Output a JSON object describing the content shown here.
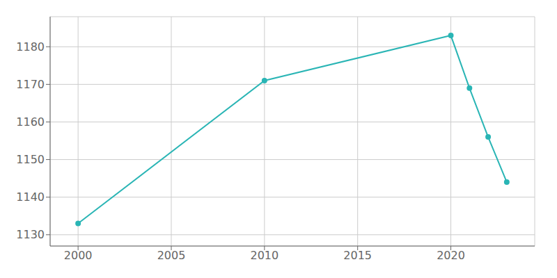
{
  "chart_data": {
    "type": "line",
    "x": [
      2000,
      2010,
      2020,
      2021,
      2022,
      2023
    ],
    "values": [
      1133,
      1171,
      1183,
      1169,
      1156,
      1144
    ],
    "color": "#2ab5b5",
    "marker": "circle",
    "xlim": [
      1998.5,
      2024.5
    ],
    "ylim": [
      1127,
      1188
    ],
    "xticks": [
      2000,
      2005,
      2010,
      2015,
      2020
    ],
    "yticks": [
      1130,
      1140,
      1150,
      1160,
      1170,
      1180
    ],
    "grid": true
  }
}
